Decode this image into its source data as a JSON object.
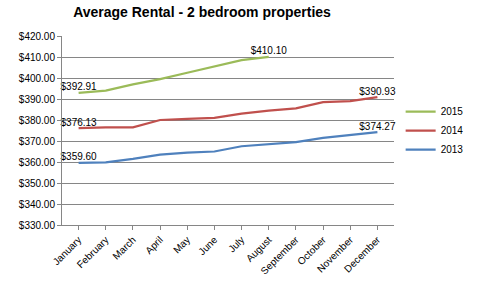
{
  "chart_data": {
    "type": "line",
    "title": "Average Rental - 2 bedroom properties",
    "categories": [
      "January",
      "February",
      "March",
      "April",
      "May",
      "June",
      "July",
      "August",
      "September",
      "October",
      "November",
      "December"
    ],
    "series": [
      {
        "name": "2015",
        "color": "#9bbb59",
        "values": [
          392.91,
          394.0,
          397.0,
          399.5,
          402.5,
          405.5,
          408.5,
          410.1,
          null,
          null,
          null,
          null
        ],
        "value_labels": [
          "$392.91",
          null,
          null,
          null,
          null,
          null,
          null,
          "$410.10",
          null,
          null,
          null,
          null
        ]
      },
      {
        "name": "2014",
        "color": "#c0504d",
        "values": [
          376.13,
          376.5,
          376.5,
          380.0,
          380.5,
          381.0,
          383.0,
          384.5,
          385.5,
          388.5,
          389.0,
          390.93
        ],
        "value_labels": [
          "$376.13",
          null,
          null,
          null,
          null,
          null,
          null,
          null,
          null,
          null,
          null,
          "$390.93"
        ]
      },
      {
        "name": "2013",
        "color": "#4f81bd",
        "values": [
          359.6,
          359.8,
          361.5,
          363.5,
          364.5,
          365.0,
          367.5,
          368.5,
          369.5,
          371.5,
          373.0,
          374.27
        ],
        "value_labels": [
          "$359.60",
          null,
          null,
          null,
          null,
          null,
          null,
          null,
          null,
          null,
          null,
          "$374.27"
        ]
      }
    ],
    "ylim": [
      330,
      420
    ],
    "yticks": [
      {
        "value": 330,
        "label": "$330.00"
      },
      {
        "value": 340,
        "label": "$340.00"
      },
      {
        "value": 350,
        "label": "$350.00"
      },
      {
        "value": 360,
        "label": "$360.00"
      },
      {
        "value": 370,
        "label": "$370.00"
      },
      {
        "value": 380,
        "label": "$380.00"
      },
      {
        "value": 390,
        "label": "$390.00"
      },
      {
        "value": 400,
        "label": "$400.00"
      },
      {
        "value": 410,
        "label": "$410.00"
      },
      {
        "value": 420,
        "label": "$420.00"
      }
    ],
    "grid": true,
    "legend": "right"
  }
}
